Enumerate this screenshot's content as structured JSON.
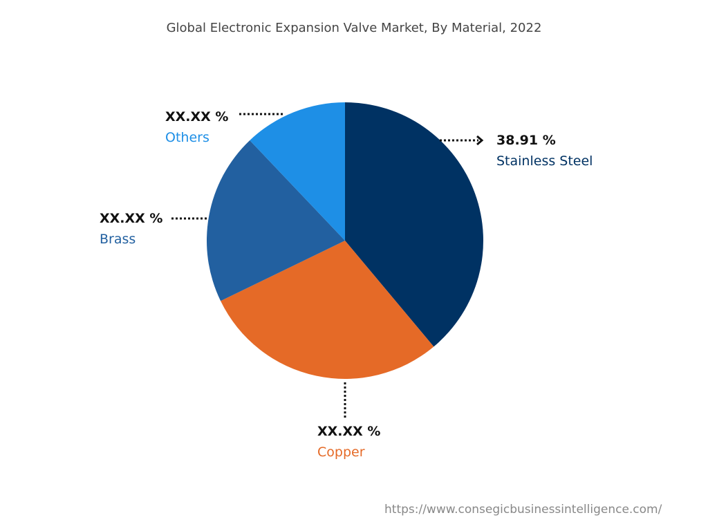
{
  "chart_data": {
    "type": "pie",
    "title": "Global Electronic Expansion Valve Market, By Material, 2022",
    "slices": [
      {
        "name": "Stainless Steel",
        "value": 38.91,
        "label": "38.91 %",
        "color": "#003263"
      },
      {
        "name": "Copper",
        "value": 28.9,
        "label": "XX.XX %",
        "color": "#E56A27"
      },
      {
        "name": "Brass",
        "value": 20.1,
        "label": "XX.XX %",
        "color": "#2260A0"
      },
      {
        "name": "Others",
        "value": 12.09,
        "label": "XX.XX %",
        "color": "#1E8FE6"
      }
    ],
    "start_angle": "12 o'clock",
    "direction": "clockwise"
  },
  "source": "https://www.consegicbusinessintelligence.com/"
}
